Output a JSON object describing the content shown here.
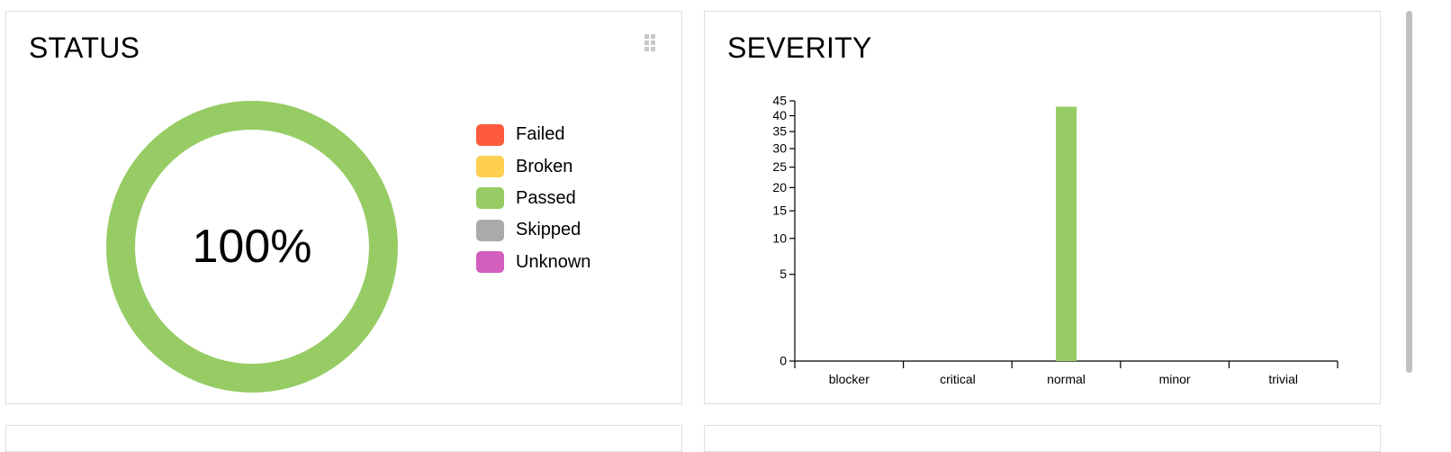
{
  "status": {
    "title": "STATUS",
    "drag_icon": "grip-dots-icon",
    "percent": "100%",
    "passed_fraction": 1.0,
    "ring_color": "#97cc64",
    "legend": [
      {
        "label": "Failed",
        "color": "#fd5a3e"
      },
      {
        "label": "Broken",
        "color": "#ffd050"
      },
      {
        "label": "Passed",
        "color": "#97cc64"
      },
      {
        "label": "Skipped",
        "color": "#aaaaaa"
      },
      {
        "label": "Unknown",
        "color": "#d35ebe"
      }
    ]
  },
  "severity": {
    "title": "SEVERITY"
  },
  "chart_data": {
    "type": "bar",
    "categories": [
      "blocker",
      "critical",
      "normal",
      "minor",
      "trivial"
    ],
    "values": [
      0,
      0,
      43,
      0,
      0
    ],
    "yscale": "sqrt",
    "ylim": [
      0,
      45
    ],
    "yticks": [
      0,
      5,
      10,
      15,
      20,
      25,
      30,
      35,
      40,
      45
    ],
    "bar_color": "#97cc64",
    "grid": false
  }
}
